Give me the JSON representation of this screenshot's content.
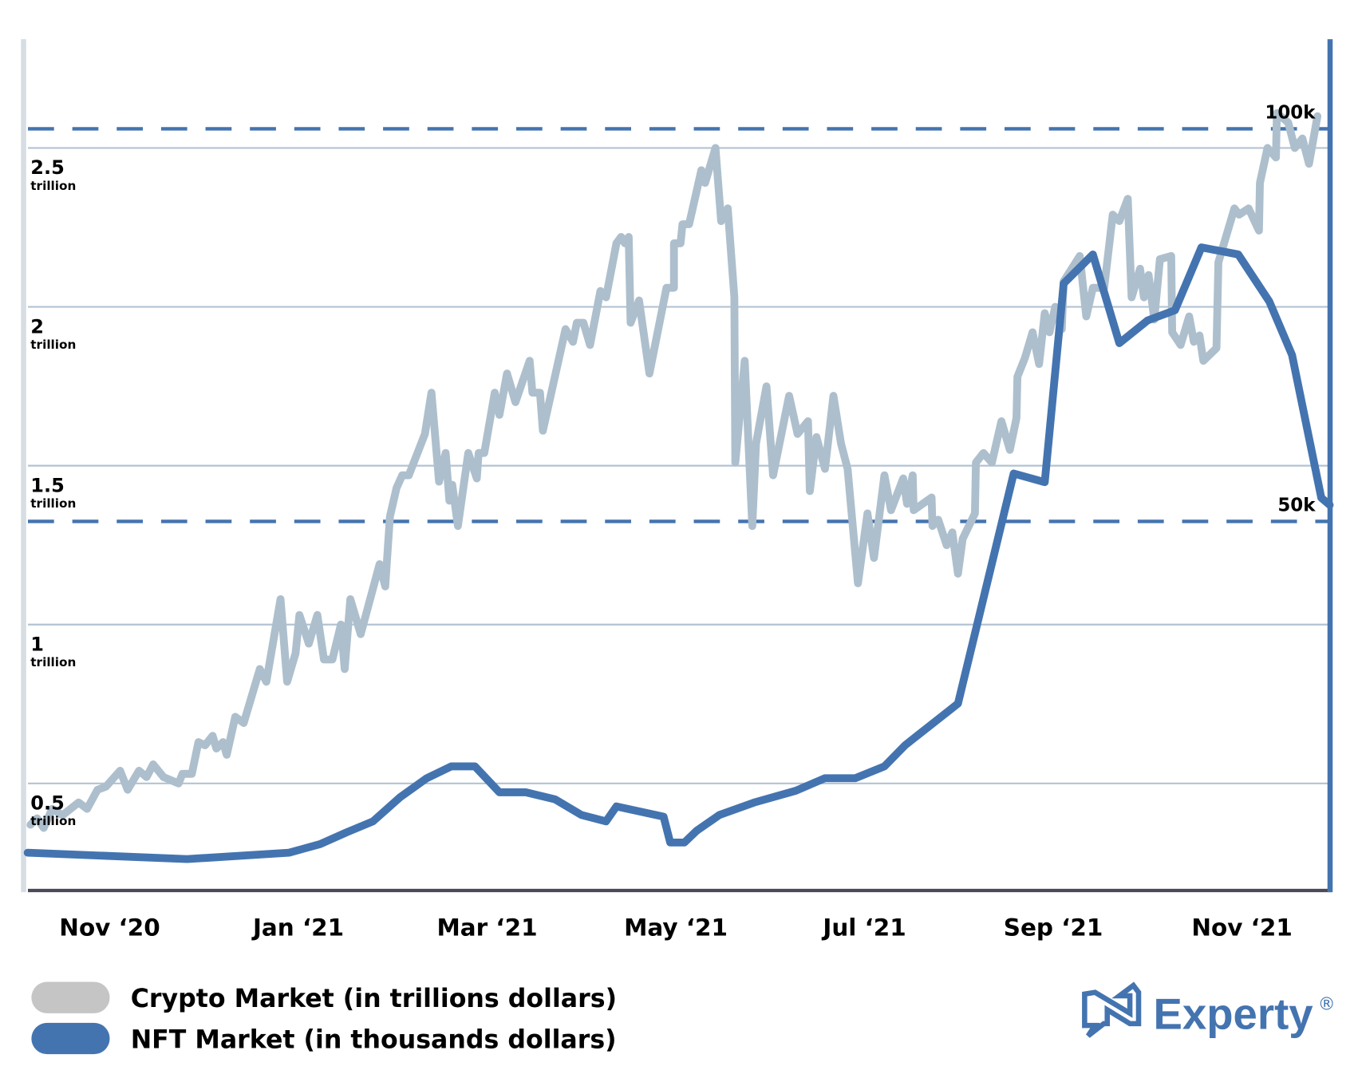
{
  "chart_data": {
    "type": "line",
    "title": "",
    "x_unit": "month index (0 = Nov '20)",
    "x_ticks": [
      {
        "value": 0,
        "label": "Nov ‘20"
      },
      {
        "value": 2,
        "label": "Jan ‘21"
      },
      {
        "value": 4,
        "label": "Mar ‘21"
      },
      {
        "value": 6,
        "label": "May ‘21"
      },
      {
        "value": 8,
        "label": "Jul ‘21"
      },
      {
        "value": 10,
        "label": "Sep ‘21"
      },
      {
        "value": 12,
        "label": "Nov ‘21"
      }
    ],
    "xlim": [
      -0.87,
      12.93
    ],
    "y_left": {
      "label": "Crypto Market (trillions USD)",
      "ticks": [
        {
          "value": 0.5,
          "label": "0.5",
          "unit": "trillion"
        },
        {
          "value": 1,
          "label": "1",
          "unit": "trillion"
        },
        {
          "value": 1.5,
          "label": "1.5",
          "unit": "trillion"
        },
        {
          "value": 2,
          "label": "2",
          "unit": "trillion"
        },
        {
          "value": 2.5,
          "label": "2.5",
          "unit": "trillion"
        }
      ],
      "grid": true
    },
    "y_right": {
      "label": "NFT Market (thousands USD)",
      "ticks": [
        {
          "value": 50,
          "label": "50k"
        },
        {
          "value": 100,
          "label": "100k"
        }
      ],
      "reference_lines": "dashed"
    },
    "series": [
      {
        "name": "Crypto Market (in trillions dollars)",
        "axis": "left",
        "color": "#adbfcd",
        "points": [
          [
            -0.84,
            0.37
          ],
          [
            -0.77,
            0.39
          ],
          [
            -0.7,
            0.36
          ],
          [
            -0.61,
            0.42
          ],
          [
            -0.5,
            0.4
          ],
          [
            -0.33,
            0.44
          ],
          [
            -0.24,
            0.42
          ],
          [
            -0.13,
            0.48
          ],
          [
            -0.04,
            0.49
          ],
          [
            0.11,
            0.54
          ],
          [
            0.19,
            0.48
          ],
          [
            0.31,
            0.54
          ],
          [
            0.39,
            0.52
          ],
          [
            0.46,
            0.56
          ],
          [
            0.57,
            0.52
          ],
          [
            0.73,
            0.5
          ],
          [
            0.77,
            0.53
          ],
          [
            0.87,
            0.53
          ],
          [
            0.94,
            0.63
          ],
          [
            1.01,
            0.62
          ],
          [
            1.09,
            0.65
          ],
          [
            1.13,
            0.61
          ],
          [
            1.2,
            0.63
          ],
          [
            1.24,
            0.59
          ],
          [
            1.33,
            0.71
          ],
          [
            1.42,
            0.69
          ],
          [
            1.59,
            0.86
          ],
          [
            1.66,
            0.82
          ],
          [
            1.81,
            1.08
          ],
          [
            1.88,
            0.82
          ],
          [
            1.97,
            0.91
          ],
          [
            2.01,
            1.03
          ],
          [
            2.11,
            0.94
          ],
          [
            2.2,
            1.03
          ],
          [
            2.27,
            0.89
          ],
          [
            2.36,
            0.89
          ],
          [
            2.45,
            1.0
          ],
          [
            2.49,
            0.86
          ],
          [
            2.55,
            1.08
          ],
          [
            2.66,
            0.97
          ],
          [
            2.86,
            1.19
          ],
          [
            2.92,
            1.12
          ],
          [
            2.97,
            1.34
          ],
          [
            3.04,
            1.43
          ],
          [
            3.1,
            1.47
          ],
          [
            3.17,
            1.47
          ],
          [
            3.34,
            1.6
          ],
          [
            3.41,
            1.73
          ],
          [
            3.49,
            1.45
          ],
          [
            3.56,
            1.54
          ],
          [
            3.6,
            1.39
          ],
          [
            3.63,
            1.44
          ],
          [
            3.69,
            1.31
          ],
          [
            3.8,
            1.54
          ],
          [
            3.89,
            1.46
          ],
          [
            3.91,
            1.54
          ],
          [
            3.97,
            1.54
          ],
          [
            4.08,
            1.73
          ],
          [
            4.13,
            1.66
          ],
          [
            4.21,
            1.79
          ],
          [
            4.3,
            1.7
          ],
          [
            4.45,
            1.83
          ],
          [
            4.48,
            1.73
          ],
          [
            4.56,
            1.73
          ],
          [
            4.59,
            1.61
          ],
          [
            4.83,
            1.93
          ],
          [
            4.91,
            1.89
          ],
          [
            4.95,
            1.95
          ],
          [
            5.02,
            1.95
          ],
          [
            5.09,
            1.88
          ],
          [
            5.2,
            2.05
          ],
          [
            5.26,
            2.03
          ],
          [
            5.37,
            2.2
          ],
          [
            5.42,
            2.22
          ],
          [
            5.46,
            2.2
          ],
          [
            5.5,
            2.22
          ],
          [
            5.52,
            1.95
          ],
          [
            5.61,
            2.02
          ],
          [
            5.72,
            1.79
          ],
          [
            5.9,
            2.06
          ],
          [
            5.98,
            2.06
          ],
          [
            5.98,
            2.2
          ],
          [
            6.05,
            2.2
          ],
          [
            6.07,
            2.26
          ],
          [
            6.14,
            2.26
          ],
          [
            6.27,
            2.43
          ],
          [
            6.31,
            2.39
          ],
          [
            6.42,
            2.5
          ],
          [
            6.48,
            2.27
          ],
          [
            6.55,
            2.31
          ],
          [
            6.62,
            2.03
          ],
          [
            6.63,
            1.51
          ],
          [
            6.73,
            1.83
          ],
          [
            6.81,
            1.31
          ],
          [
            6.85,
            1.57
          ],
          [
            6.96,
            1.75
          ],
          [
            7.03,
            1.47
          ],
          [
            7.2,
            1.72
          ],
          [
            7.29,
            1.6
          ],
          [
            7.4,
            1.64
          ],
          [
            7.42,
            1.42
          ],
          [
            7.49,
            1.59
          ],
          [
            7.58,
            1.49
          ],
          [
            7.67,
            1.72
          ],
          [
            7.75,
            1.57
          ],
          [
            7.82,
            1.49
          ],
          [
            7.93,
            1.13
          ],
          [
            8.03,
            1.35
          ],
          [
            8.1,
            1.21
          ],
          [
            8.21,
            1.47
          ],
          [
            8.28,
            1.36
          ],
          [
            8.41,
            1.46
          ],
          [
            8.45,
            1.38
          ],
          [
            8.51,
            1.47
          ],
          [
            8.52,
            1.36
          ],
          [
            8.71,
            1.4
          ],
          [
            8.72,
            1.31
          ],
          [
            8.78,
            1.33
          ],
          [
            8.87,
            1.25
          ],
          [
            8.93,
            1.29
          ],
          [
            8.99,
            1.16
          ],
          [
            9.04,
            1.27
          ],
          [
            9.17,
            1.35
          ],
          [
            9.18,
            1.51
          ],
          [
            9.26,
            1.54
          ],
          [
            9.35,
            1.51
          ],
          [
            9.45,
            1.64
          ],
          [
            9.54,
            1.55
          ],
          [
            9.61,
            1.65
          ],
          [
            9.62,
            1.78
          ],
          [
            9.7,
            1.84
          ],
          [
            9.78,
            1.92
          ],
          [
            9.85,
            1.82
          ],
          [
            9.91,
            1.98
          ],
          [
            9.96,
            1.92
          ],
          [
            10.02,
            2.0
          ],
          [
            10.09,
            1.93
          ],
          [
            10.11,
            2.08
          ],
          [
            10.28,
            2.16
          ],
          [
            10.35,
            1.97
          ],
          [
            10.42,
            2.06
          ],
          [
            10.54,
            2.06
          ],
          [
            10.63,
            2.29
          ],
          [
            10.7,
            2.27
          ],
          [
            10.79,
            2.34
          ],
          [
            10.83,
            2.03
          ],
          [
            10.92,
            2.12
          ],
          [
            10.96,
            2.03
          ],
          [
            11.01,
            2.1
          ],
          [
            11.07,
            1.96
          ],
          [
            11.13,
            2.15
          ],
          [
            11.25,
            2.16
          ],
          [
            11.26,
            1.92
          ],
          [
            11.35,
            1.88
          ],
          [
            11.44,
            1.97
          ],
          [
            11.49,
            1.89
          ],
          [
            11.55,
            1.91
          ],
          [
            11.59,
            1.83
          ],
          [
            11.73,
            1.87
          ],
          [
            11.75,
            2.14
          ],
          [
            11.92,
            2.31
          ],
          [
            11.97,
            2.29
          ],
          [
            12.07,
            2.31
          ],
          [
            12.18,
            2.24
          ],
          [
            12.19,
            2.39
          ],
          [
            12.27,
            2.5
          ],
          [
            12.36,
            2.47
          ],
          [
            12.37,
            2.61
          ],
          [
            12.49,
            2.58
          ],
          [
            12.56,
            2.5
          ],
          [
            12.64,
            2.53
          ],
          [
            12.71,
            2.45
          ],
          [
            12.8,
            2.6
          ]
        ]
      },
      {
        "name": "NFT Market (in thousands dollars)",
        "axis": "right",
        "color": "#4474b0",
        "points": [
          [
            -0.87,
            7.8
          ],
          [
            0.82,
            7.0
          ],
          [
            1.9,
            7.8
          ],
          [
            2.23,
            8.9
          ],
          [
            2.51,
            10.4
          ],
          [
            2.79,
            11.8
          ],
          [
            3.08,
            14.9
          ],
          [
            3.36,
            17.3
          ],
          [
            3.62,
            18.8
          ],
          [
            3.87,
            18.8
          ],
          [
            4.13,
            15.5
          ],
          [
            4.41,
            15.5
          ],
          [
            4.72,
            14.6
          ],
          [
            5.0,
            12.6
          ],
          [
            5.26,
            11.8
          ],
          [
            5.37,
            13.7
          ],
          [
            5.87,
            12.4
          ],
          [
            5.94,
            9.1
          ],
          [
            6.09,
            9.1
          ],
          [
            6.22,
            10.6
          ],
          [
            6.46,
            12.6
          ],
          [
            6.83,
            14.2
          ],
          [
            7.27,
            15.7
          ],
          [
            7.58,
            17.3
          ],
          [
            7.9,
            17.3
          ],
          [
            8.21,
            18.8
          ],
          [
            8.43,
            21.5
          ],
          [
            8.99,
            26.8
          ],
          [
            9.58,
            56.1
          ],
          [
            9.91,
            55.0
          ],
          [
            10.11,
            80.3
          ],
          [
            10.42,
            84.0
          ],
          [
            10.7,
            72.7
          ],
          [
            11.0,
            75.6
          ],
          [
            11.29,
            76.9
          ],
          [
            11.57,
            84.9
          ],
          [
            11.96,
            84.0
          ],
          [
            12.29,
            78.0
          ],
          [
            12.53,
            71.2
          ],
          [
            12.84,
            53.0
          ],
          [
            12.93,
            52.1
          ]
        ]
      }
    ],
    "legend": {
      "placement": "bottom-left",
      "items": [
        {
          "label": "Crypto Market (in trillions dollars)",
          "color": "#c5c5c5"
        },
        {
          "label": "NFT Market (in thousands dollars)",
          "color": "#4474b0"
        }
      ]
    }
  },
  "logo": {
    "text": "Experty",
    "mark": "®",
    "color": "#4474b0"
  }
}
